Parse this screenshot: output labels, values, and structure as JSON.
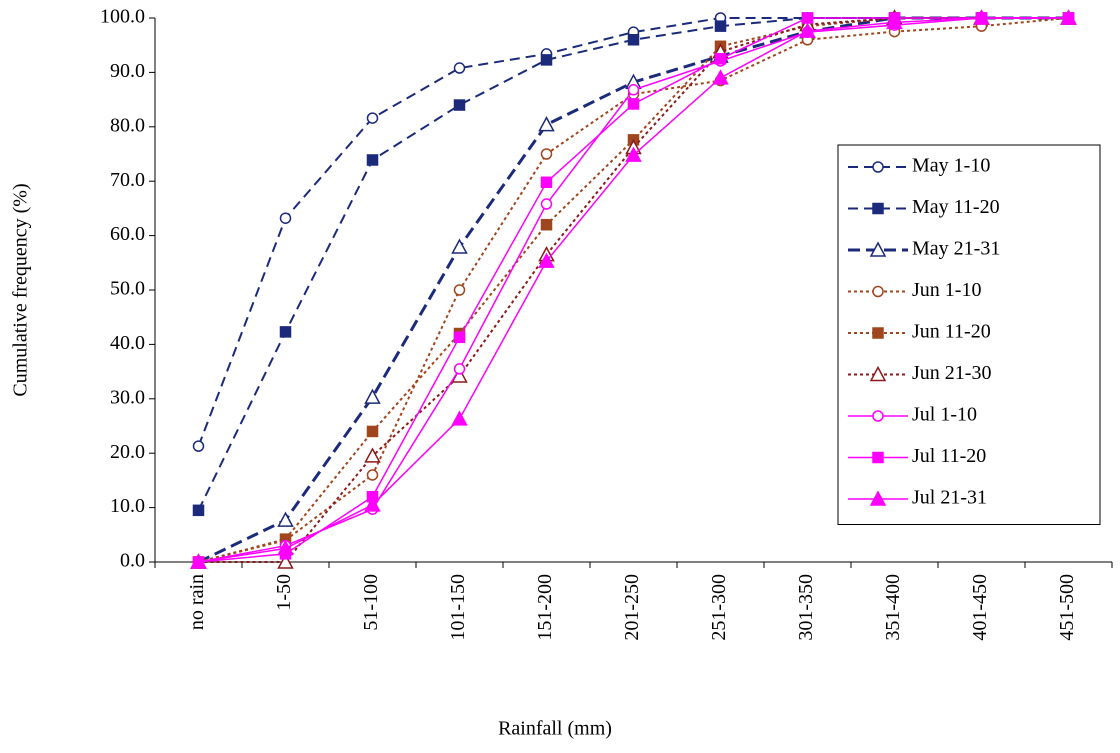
{
  "chart_data": {
    "type": "line",
    "x_label": "Rainfall (mm)",
    "y_label": "Cumulative frequency (%)",
    "categories": [
      "no rain",
      "1-50",
      "51-100",
      "101-150",
      "151-200",
      "201-250",
      "251-300",
      "301-350",
      "351-400",
      "401-450",
      "451-500"
    ],
    "ylim": [
      0,
      100
    ],
    "yticks": [
      {
        "value": 0,
        "label": "0.0"
      },
      {
        "value": 10,
        "label": "10.0"
      },
      {
        "value": 20,
        "label": "20.0"
      },
      {
        "value": 30,
        "label": "30.0"
      },
      {
        "value": 40,
        "label": "40.0"
      },
      {
        "value": 50,
        "label": "50.0"
      },
      {
        "value": 60,
        "label": "60.0"
      },
      {
        "value": 70,
        "label": "70.0"
      },
      {
        "value": 80,
        "label": "80.0"
      },
      {
        "value": 90,
        "label": "90.0"
      },
      {
        "value": 100,
        "label": "100.0"
      }
    ],
    "legend": "right",
    "series": [
      {
        "name": "May 1-10",
        "color": "#1c2a7c",
        "dash": "10,6",
        "width": 2,
        "marker": "circle",
        "filled": false,
        "values": [
          21.3,
          63.2,
          81.6,
          90.8,
          93.4,
          97.4,
          100,
          100,
          100,
          100,
          100
        ]
      },
      {
        "name": "May 11-20",
        "color": "#1c2a7c",
        "dash": "10,6",
        "width": 2,
        "marker": "square",
        "filled": true,
        "values": [
          9.5,
          42.3,
          73.9,
          84.0,
          92.3,
          96.0,
          98.5,
          100,
          100,
          100,
          100
        ]
      },
      {
        "name": "May 21-31",
        "color": "#1c2a7c",
        "dash": "12,6",
        "width": 3,
        "marker": "triangle",
        "filled": false,
        "values": [
          0,
          7.7,
          30.3,
          57.9,
          80.4,
          88.2,
          93.0,
          97.5,
          100,
          100,
          100
        ]
      },
      {
        "name": "Jun 1-10",
        "color": "#a0461e",
        "dash": "3,3",
        "width": 2,
        "marker": "circle",
        "filled": false,
        "values": [
          0,
          4.0,
          16.0,
          50.0,
          75.0,
          86.0,
          88.5,
          96.0,
          97.5,
          98.5,
          100
        ]
      },
      {
        "name": "Jun 11-20",
        "color": "#a0461e",
        "dash": "3,3",
        "width": 2,
        "marker": "square",
        "filled": true,
        "values": [
          0,
          4.2,
          24.0,
          42.0,
          62.0,
          77.6,
          94.8,
          98.5,
          100,
          100,
          100
        ]
      },
      {
        "name": "Jun 21-30",
        "color": "#8b1a1a",
        "dash": "3,3",
        "width": 2,
        "marker": "triangle",
        "filled": false,
        "values": [
          0,
          0,
          19.5,
          34.2,
          56.5,
          76.2,
          93.8,
          98.8,
          100,
          100,
          100
        ]
      },
      {
        "name": "Jul 1-10",
        "color": "#ff00ff",
        "dash": "",
        "width": 1.5,
        "marker": "circle",
        "filled": false,
        "values": [
          0,
          3.0,
          9.7,
          35.5,
          65.8,
          86.8,
          92.1,
          97.4,
          98.7,
          100,
          100
        ]
      },
      {
        "name": "Jul 11-20",
        "color": "#ff00ff",
        "dash": "",
        "width": 1.5,
        "marker": "square",
        "filled": true,
        "values": [
          0,
          1.5,
          12.0,
          41.3,
          69.8,
          84.2,
          92.5,
          100,
          100,
          100,
          100
        ]
      },
      {
        "name": "Jul 21-31",
        "color": "#ff00ff",
        "dash": "",
        "width": 1.5,
        "marker": "triangle",
        "filled": true,
        "values": [
          0,
          2.5,
          10.5,
          26.3,
          55.3,
          74.8,
          89.0,
          97.6,
          99.2,
          100,
          100
        ]
      }
    ]
  }
}
